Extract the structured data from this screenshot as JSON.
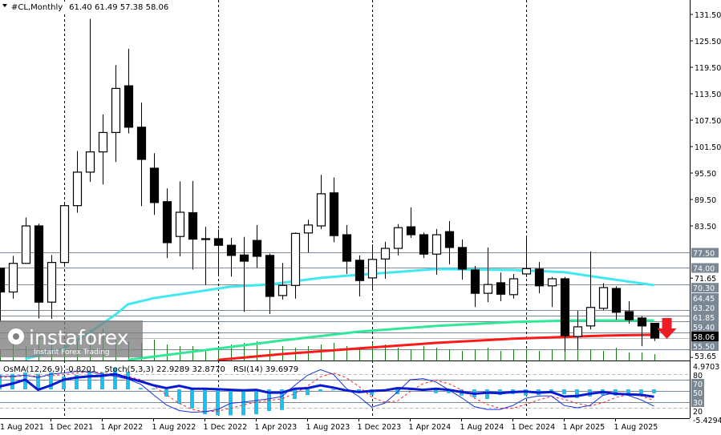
{
  "header": {
    "symbol_timeframe": "#CL,Monthly",
    "ohlc": "61.40 61.49 57.38 58.06"
  },
  "indicator_header": {
    "osma": "OsMA(12,26,9) -0.8201",
    "stoch": "Stoch(5,3,3) 22.9289 32.8770",
    "rsi": "RSI(14) 39.6979"
  },
  "logo": {
    "brand": "instaforex",
    "tagline": "Instant Forex Trading"
  },
  "colors": {
    "bull_body": "#ffffff",
    "bear_body": "#000000",
    "ma_fast": "#40e8f0",
    "ma_mid": "#30e898",
    "ma_slow": "#ff1a1a",
    "level_line": "#7a8896",
    "osma": "#1ec0f0",
    "stoch_main": "#1a30e0",
    "stoch_signal": "#ff2020",
    "rsi": "#0a1ad0",
    "arrow": "#ee1c24",
    "volume": "#1a7a1a"
  },
  "chart_data": {
    "type": "candlestick",
    "title": "#CL,Monthly",
    "price_axis": {
      "ticks": [
        "131.50",
        "125.50",
        "119.50",
        "113.50",
        "107.50",
        "101.50",
        "95.50",
        "89.50",
        "83.50",
        "71.65",
        "53.65"
      ],
      "tick_values": [
        131.5,
        125.5,
        119.5,
        113.5,
        107.5,
        101.5,
        95.5,
        89.5,
        83.5,
        71.65,
        53.65
      ],
      "level_labels": [
        "77.50",
        "74.00",
        "70.30",
        "64.45",
        "63.20",
        "61.85",
        "59.40",
        "55.50"
      ],
      "level_values": [
        77.5,
        74.0,
        70.3,
        64.45,
        63.2,
        61.85,
        59.4,
        55.5
      ],
      "bid_label": "58.06",
      "bid_value": 58.06,
      "ylim": [
        53.0,
        133.0
      ]
    },
    "x_axis": {
      "labels": [
        "1 Aug 2021",
        "1 Dec 2021",
        "1 Apr 2022",
        "1 Aug 2022",
        "1 Dec 2022",
        "1 Apr 2023",
        "1 Aug 2023",
        "1 Dec 2023",
        "1 Apr 2024",
        "1 Aug 2024",
        "1 Dec 2024",
        "1 Apr 2025",
        "1 Aug 2025"
      ],
      "label_dates": [
        "2021-08",
        "2021-12",
        "2022-04",
        "2022-08",
        "2022-12",
        "2023-04",
        "2023-08",
        "2023-12",
        "2024-04",
        "2024-08",
        "2024-12",
        "2025-04",
        "2025-08"
      ],
      "year_separators": [
        "2022-01",
        "2023-01",
        "2024-01",
        "2025-01"
      ]
    },
    "candles": [
      {
        "date": "2021-08",
        "o": 73.9,
        "h": 74.0,
        "l": 61.7,
        "c": 68.5
      },
      {
        "date": "2021-09",
        "o": 68.5,
        "h": 76.7,
        "l": 67.0,
        "c": 75.0
      },
      {
        "date": "2021-10",
        "o": 75.0,
        "h": 85.4,
        "l": 74.9,
        "c": 83.5
      },
      {
        "date": "2021-11",
        "o": 83.5,
        "h": 84.0,
        "l": 62.5,
        "c": 66.2
      },
      {
        "date": "2021-12",
        "o": 66.2,
        "h": 76.9,
        "l": 62.4,
        "c": 75.2
      },
      {
        "date": "2022-01",
        "o": 75.2,
        "h": 88.8,
        "l": 74.3,
        "c": 88.1
      },
      {
        "date": "2022-02",
        "o": 88.1,
        "h": 100.5,
        "l": 86.5,
        "c": 95.7
      },
      {
        "date": "2022-03",
        "o": 95.7,
        "h": 130.5,
        "l": 93.5,
        "c": 100.3
      },
      {
        "date": "2022-04",
        "o": 100.3,
        "h": 108.8,
        "l": 92.9,
        "c": 104.7
      },
      {
        "date": "2022-05",
        "o": 104.7,
        "h": 120.0,
        "l": 98.0,
        "c": 114.7
      },
      {
        "date": "2022-06",
        "o": 115.3,
        "h": 123.7,
        "l": 104.5,
        "c": 105.9
      },
      {
        "date": "2022-07",
        "o": 105.9,
        "h": 111.5,
        "l": 88.0,
        "c": 98.6
      },
      {
        "date": "2022-08",
        "o": 96.6,
        "h": 100.0,
        "l": 86.0,
        "c": 88.8
      },
      {
        "date": "2022-09",
        "o": 89.0,
        "h": 92.0,
        "l": 76.2,
        "c": 79.7
      },
      {
        "date": "2022-10",
        "o": 81.1,
        "h": 93.6,
        "l": 76.6,
        "c": 86.6
      },
      {
        "date": "2022-11",
        "o": 86.5,
        "h": 93.7,
        "l": 73.6,
        "c": 80.5
      },
      {
        "date": "2022-12",
        "o": 80.6,
        "h": 83.3,
        "l": 70.1,
        "c": 80.4
      },
      {
        "date": "2023-01",
        "o": 80.6,
        "h": 82.7,
        "l": 72.5,
        "c": 79.1
      },
      {
        "date": "2023-02",
        "o": 79.1,
        "h": 80.8,
        "l": 72.0,
        "c": 76.8
      },
      {
        "date": "2023-03",
        "o": 76.9,
        "h": 81.0,
        "l": 64.0,
        "c": 75.5
      },
      {
        "date": "2023-04",
        "o": 80.2,
        "h": 83.7,
        "l": 74.0,
        "c": 76.6
      },
      {
        "date": "2023-05",
        "o": 76.8,
        "h": 77.2,
        "l": 63.5,
        "c": 67.5
      },
      {
        "date": "2023-06",
        "o": 67.7,
        "h": 75.1,
        "l": 66.8,
        "c": 70.0
      },
      {
        "date": "2023-07",
        "o": 70.0,
        "h": 82.0,
        "l": 67.0,
        "c": 81.8
      },
      {
        "date": "2023-08",
        "o": 81.9,
        "h": 84.9,
        "l": 77.5,
        "c": 83.7
      },
      {
        "date": "2023-09",
        "o": 83.5,
        "h": 95.1,
        "l": 82.8,
        "c": 90.8
      },
      {
        "date": "2023-10",
        "o": 91.0,
        "h": 94.5,
        "l": 79.8,
        "c": 81.3
      },
      {
        "date": "2023-11",
        "o": 81.5,
        "h": 83.7,
        "l": 72.6,
        "c": 75.5
      },
      {
        "date": "2023-12",
        "o": 75.7,
        "h": 76.8,
        "l": 67.5,
        "c": 71.1
      },
      {
        "date": "2024-01",
        "o": 71.7,
        "h": 79.3,
        "l": 69.0,
        "c": 75.9
      },
      {
        "date": "2024-02",
        "o": 76.0,
        "h": 79.9,
        "l": 71.5,
        "c": 78.4
      },
      {
        "date": "2024-03",
        "o": 78.4,
        "h": 83.9,
        "l": 76.8,
        "c": 83.1
      },
      {
        "date": "2024-04",
        "o": 83.3,
        "h": 87.7,
        "l": 80.8,
        "c": 81.5
      },
      {
        "date": "2024-05",
        "o": 81.5,
        "h": 82.0,
        "l": 76.2,
        "c": 77.1
      },
      {
        "date": "2024-06",
        "o": 77.1,
        "h": 82.8,
        "l": 72.4,
        "c": 81.5
      },
      {
        "date": "2024-07",
        "o": 82.2,
        "h": 84.6,
        "l": 74.8,
        "c": 78.6
      },
      {
        "date": "2024-08",
        "o": 78.6,
        "h": 80.4,
        "l": 71.3,
        "c": 73.7
      },
      {
        "date": "2024-09",
        "o": 73.5,
        "h": 74.4,
        "l": 65.1,
        "c": 68.2
      },
      {
        "date": "2024-10",
        "o": 68.2,
        "h": 78.6,
        "l": 66.2,
        "c": 70.2
      },
      {
        "date": "2024-11",
        "o": 70.6,
        "h": 72.9,
        "l": 66.4,
        "c": 68.0
      },
      {
        "date": "2024-12",
        "o": 67.9,
        "h": 72.6,
        "l": 67.0,
        "c": 71.5
      },
      {
        "date": "2025-01",
        "o": 72.6,
        "h": 81.3,
        "l": 71.9,
        "c": 73.8
      },
      {
        "date": "2025-02",
        "o": 73.7,
        "h": 75.3,
        "l": 68.2,
        "c": 69.9
      },
      {
        "date": "2025-03",
        "o": 69.9,
        "h": 71.9,
        "l": 65.1,
        "c": 71.5
      },
      {
        "date": "2025-04",
        "o": 71.5,
        "h": 71.9,
        "l": 55.0,
        "c": 58.6
      },
      {
        "date": "2025-05",
        "o": 58.4,
        "h": 64.2,
        "l": 55.5,
        "c": 60.6
      },
      {
        "date": "2025-06",
        "o": 60.8,
        "h": 77.7,
        "l": 60.0,
        "c": 65.0
      },
      {
        "date": "2025-07",
        "o": 64.8,
        "h": 70.5,
        "l": 64.4,
        "c": 69.5
      },
      {
        "date": "2025-08",
        "o": 69.3,
        "h": 69.8,
        "l": 62.2,
        "c": 63.9
      },
      {
        "date": "2025-09",
        "o": 64.05,
        "h": 66.4,
        "l": 61.3,
        "c": 62.2
      },
      {
        "date": "2025-10",
        "o": 62.6,
        "h": 63.0,
        "l": 56.2,
        "c": 60.8
      },
      {
        "date": "2025-11",
        "o": 61.4,
        "h": 61.49,
        "l": 57.38,
        "c": 58.06
      }
    ],
    "moving_averages": [
      {
        "color": "#40e8f0",
        "points": [
          [
            "2021-10",
            53.3
          ],
          [
            "2022-01",
            55.7
          ],
          [
            "2022-03",
            59.3
          ],
          [
            "2022-05",
            63.3
          ],
          [
            "2022-06",
            65.7
          ],
          [
            "2022-08",
            67.1
          ],
          [
            "2023-02",
            69.7
          ],
          [
            "2023-05",
            70.2
          ],
          [
            "2023-09",
            71.7
          ],
          [
            "2023-12",
            72.4
          ],
          [
            "2024-06",
            73.7
          ],
          [
            "2024-12",
            73.5
          ],
          [
            "2025-04",
            73.0
          ],
          [
            "2025-07",
            71.7
          ],
          [
            "2025-11",
            70.05
          ]
        ]
      },
      {
        "color": "#30e898",
        "points": [
          [
            "2022-06",
            53.1
          ],
          [
            "2022-12",
            55.3
          ],
          [
            "2023-06",
            57.5
          ],
          [
            "2023-12",
            59.5
          ],
          [
            "2024-06",
            60.8
          ],
          [
            "2024-12",
            61.7
          ],
          [
            "2025-05",
            62.05
          ],
          [
            "2025-11",
            62.05
          ]
        ]
      },
      {
        "color": "#ff1a1a",
        "points": [
          [
            "2023-01",
            53.1
          ],
          [
            "2023-06",
            54.4
          ],
          [
            "2023-12",
            55.7
          ],
          [
            "2024-06",
            56.95
          ],
          [
            "2024-12",
            57.9
          ],
          [
            "2025-07",
            58.6
          ],
          [
            "2025-11",
            58.8
          ]
        ]
      }
    ],
    "signal_arrow": {
      "direction": "down",
      "date": "2025-12",
      "color": "#ee1c24"
    },
    "indicators": {
      "axis_labels": {
        "max": "4.9703",
        "l80": "80",
        "l70": "70",
        "l50": "50",
        "l30": "30",
        "l20": "20",
        "min": "-5.4294"
      },
      "osma_range": [
        -5.4294,
        4.9703
      ],
      "osma": [
        3.0,
        3.2,
        3.5,
        3.2,
        3.5,
        2.7,
        3.0,
        3.8,
        3.5,
        4.5,
        3.7,
        0.3,
        0.2,
        -1.5,
        -3.0,
        -4.0,
        -5.2,
        -5.4,
        -5.4,
        -5.4,
        -5.2,
        -4.5,
        -4.3,
        -2.0,
        -1.2,
        -0.5,
        -0.2,
        0.0,
        -0.7,
        -1.2,
        -0.3,
        -1.0,
        -0.2,
        0.0,
        -0.8,
        -0.8,
        -1.3,
        -1.7,
        -2.0,
        -1.2,
        -1.0,
        -1.3,
        -1.2,
        -0.7,
        -1.0,
        -1.8,
        -1.5,
        -1.2,
        -1.3,
        -1.0,
        -0.9,
        -0.82
      ],
      "stoch_main": [
        76,
        76,
        78,
        74,
        80,
        82,
        85,
        84,
        80,
        76,
        71,
        62,
        43,
        25,
        15,
        12,
        13,
        17,
        28,
        30,
        33,
        36,
        40,
        60,
        78,
        88,
        80,
        55,
        40,
        21,
        28,
        48,
        70,
        72,
        66,
        52,
        38,
        22,
        17,
        17,
        24,
        37,
        41,
        41,
        24,
        20,
        24,
        42,
        47,
        42,
        34,
        22.93
      ],
      "stoch_signal": [
        74,
        75,
        77,
        76,
        77,
        79,
        82,
        84,
        83,
        80,
        76,
        70,
        59,
        43,
        28,
        17,
        13,
        14,
        19,
        25,
        30,
        33,
        36,
        45,
        59,
        75,
        82,
        74,
        58,
        39,
        30,
        32,
        49,
        63,
        69,
        63,
        52,
        37,
        26,
        19,
        19,
        26,
        34,
        40,
        35,
        28,
        23,
        29,
        38,
        44,
        41,
        32.88
      ],
      "rsi": [
        58,
        63,
        70,
        52,
        60,
        70,
        74,
        76,
        77,
        80,
        73,
        67,
        60,
        55,
        59,
        54,
        54,
        53,
        52,
        51,
        52,
        47,
        47,
        54,
        55,
        60,
        56,
        51,
        48,
        50,
        51,
        55,
        54,
        52,
        54,
        52,
        48,
        45,
        47,
        46,
        48,
        49,
        47,
        48,
        40,
        41,
        45,
        48,
        45,
        44,
        43,
        39.7
      ]
    }
  }
}
